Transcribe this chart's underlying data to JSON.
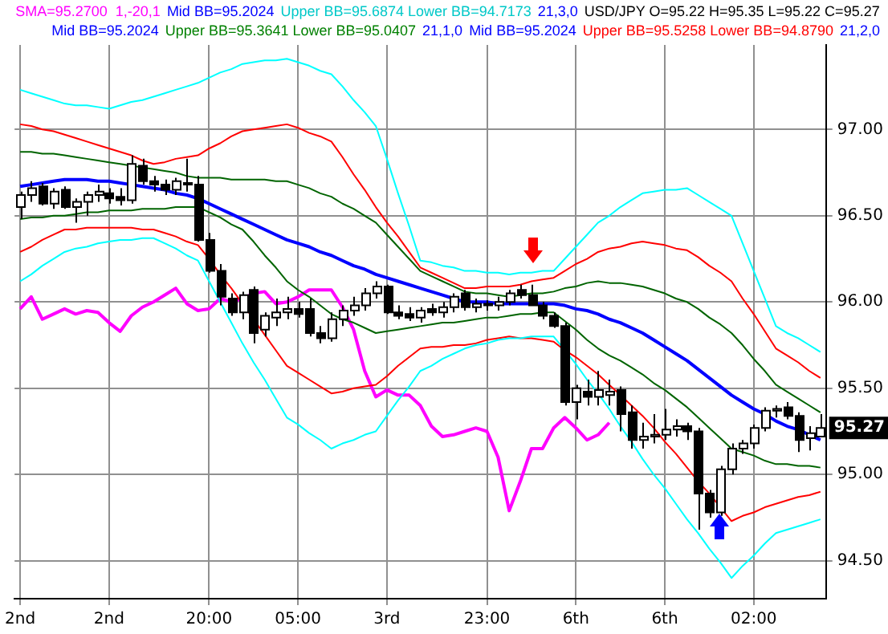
{
  "chart_data": {
    "type": "candlestick",
    "categories": [
      "2nd",
      null,
      null,
      null,
      null,
      null,
      null,
      null,
      "2nd",
      null,
      null,
      null,
      null,
      null,
      null,
      null,
      null,
      "20:00",
      null,
      null,
      null,
      null,
      null,
      null,
      null,
      "05:00",
      null,
      null,
      null,
      null,
      null,
      null,
      null,
      "3rd",
      null,
      null,
      null,
      null,
      null,
      null,
      null,
      null,
      "23:00",
      null,
      null,
      null,
      null,
      null,
      null,
      null,
      "6th",
      null,
      null,
      null,
      null,
      null,
      null,
      null,
      "6th",
      null,
      null,
      null,
      null,
      null,
      null,
      null,
      "02:00",
      null,
      null,
      null,
      null,
      null,
      null
    ],
    "ohlc": [
      [
        96.55,
        96.64,
        96.48,
        96.62
      ],
      [
        96.62,
        96.7,
        96.58,
        96.66
      ],
      [
        96.67,
        96.69,
        96.56,
        96.57
      ],
      [
        96.57,
        96.66,
        96.54,
        96.64
      ],
      [
        96.65,
        96.67,
        96.54,
        96.55
      ],
      [
        96.55,
        96.6,
        96.46,
        96.58
      ],
      [
        96.58,
        96.64,
        96.5,
        96.62
      ],
      [
        96.62,
        96.68,
        96.58,
        96.64
      ],
      [
        96.63,
        96.66,
        96.57,
        96.6
      ],
      [
        96.61,
        96.66,
        96.56,
        96.59
      ],
      [
        96.59,
        96.85,
        96.57,
        96.8
      ],
      [
        96.79,
        96.83,
        96.68,
        96.7
      ],
      [
        96.7,
        96.73,
        96.64,
        96.68
      ],
      [
        96.68,
        96.71,
        96.62,
        96.65
      ],
      [
        96.65,
        96.72,
        96.62,
        96.7
      ],
      [
        96.69,
        96.83,
        96.64,
        96.68
      ],
      [
        96.68,
        96.73,
        96.35,
        96.36
      ],
      [
        96.36,
        96.4,
        96.17,
        96.18
      ],
      [
        96.18,
        96.22,
        95.98,
        96.03
      ],
      [
        96.02,
        96.05,
        95.92,
        95.94
      ],
      [
        95.94,
        96.06,
        95.9,
        96.04
      ],
      [
        96.07,
        96.09,
        95.76,
        95.82
      ],
      [
        95.84,
        95.94,
        95.8,
        95.92
      ],
      [
        95.91,
        96.02,
        95.86,
        95.94
      ],
      [
        95.94,
        96.03,
        95.9,
        95.96
      ],
      [
        95.96,
        96.0,
        95.91,
        95.93
      ],
      [
        95.96,
        96.02,
        95.8,
        95.82
      ],
      [
        95.82,
        95.86,
        95.76,
        95.79
      ],
      [
        95.79,
        95.94,
        95.77,
        95.9
      ],
      [
        95.9,
        95.98,
        95.86,
        95.95
      ],
      [
        95.95,
        96.03,
        95.92,
        95.98
      ],
      [
        95.98,
        96.08,
        95.95,
        96.05
      ],
      [
        96.05,
        96.12,
        96.02,
        96.09
      ],
      [
        96.09,
        96.1,
        95.93,
        95.94
      ],
      [
        95.94,
        95.98,
        95.9,
        95.92
      ],
      [
        95.93,
        95.97,
        95.89,
        95.91
      ],
      [
        95.91,
        95.97,
        95.88,
        95.95
      ],
      [
        95.96,
        95.99,
        95.92,
        95.94
      ],
      [
        95.94,
        96.0,
        95.91,
        95.97
      ],
      [
        95.97,
        96.05,
        95.94,
        96.03
      ],
      [
        96.05,
        96.07,
        95.95,
        95.97
      ],
      [
        95.97,
        96.02,
        95.94,
        95.99
      ],
      [
        95.98,
        96.01,
        95.95,
        95.99
      ],
      [
        95.98,
        96.03,
        95.95,
        96.0
      ],
      [
        96.0,
        96.07,
        95.98,
        96.05
      ],
      [
        96.07,
        96.1,
        96.02,
        96.04
      ],
      [
        96.04,
        96.1,
        95.98,
        95.98
      ],
      [
        95.98,
        96.0,
        95.9,
        95.92
      ],
      [
        95.92,
        95.94,
        95.85,
        95.86
      ],
      [
        95.86,
        95.88,
        95.4,
        95.42
      ],
      [
        95.42,
        95.52,
        95.32,
        95.5
      ],
      [
        95.48,
        95.55,
        95.4,
        95.45
      ],
      [
        95.45,
        95.6,
        95.4,
        95.49
      ],
      [
        95.46,
        95.55,
        95.4,
        95.48
      ],
      [
        95.49,
        95.51,
        95.25,
        95.35
      ],
      [
        95.36,
        95.4,
        95.15,
        95.2
      ],
      [
        95.2,
        95.3,
        95.15,
        95.22
      ],
      [
        95.22,
        95.35,
        95.18,
        95.23
      ],
      [
        95.23,
        95.38,
        95.2,
        95.26
      ],
      [
        95.26,
        95.32,
        95.22,
        95.28
      ],
      [
        95.28,
        95.3,
        95.2,
        95.25
      ],
      [
        95.25,
        95.27,
        94.68,
        94.89
      ],
      [
        94.89,
        94.91,
        94.75,
        94.78
      ],
      [
        94.78,
        95.05,
        94.76,
        95.03
      ],
      [
        95.03,
        95.18,
        95.0,
        95.15
      ],
      [
        95.15,
        95.2,
        95.12,
        95.18
      ],
      [
        95.18,
        95.29,
        95.15,
        95.27
      ],
      [
        95.27,
        95.39,
        95.25,
        95.37
      ],
      [
        95.37,
        95.4,
        95.33,
        95.38
      ],
      [
        95.39,
        95.42,
        95.32,
        95.34
      ],
      [
        95.34,
        95.36,
        95.13,
        95.2
      ],
      [
        95.21,
        95.28,
        95.14,
        95.24
      ],
      [
        95.22,
        95.35,
        95.22,
        95.27
      ]
    ],
    "series": [
      {
        "type": "line",
        "color": "#00ffff",
        "values": [
          97.23,
          97.21,
          97.19,
          97.17,
          97.15,
          97.14,
          97.14,
          97.13,
          97.12,
          97.14,
          97.16,
          97.17,
          97.19,
          97.21,
          97.23,
          97.25,
          97.27,
          97.3,
          97.33,
          97.35,
          97.38,
          97.39,
          97.4,
          97.4,
          97.41,
          97.39,
          97.37,
          97.34,
          97.32,
          97.25,
          97.17,
          97.1,
          97.02,
          96.83,
          96.63,
          96.44,
          96.24,
          96.23,
          96.21,
          96.2,
          96.18,
          96.18,
          96.17,
          96.17,
          96.16,
          96.17,
          96.17,
          96.18,
          96.18,
          96.25,
          96.32,
          96.39,
          96.46,
          96.5,
          96.55,
          96.59,
          96.63,
          96.64,
          96.65,
          96.65,
          96.66,
          96.62,
          96.58,
          96.54,
          96.5,
          96.34,
          96.18,
          96.02,
          95.86,
          95.82,
          95.79,
          95.75,
          95.71
        ]
      },
      {
        "type": "line",
        "color": "#00ffff",
        "values": [
          96.12,
          96.16,
          96.21,
          96.25,
          96.29,
          96.31,
          96.32,
          96.34,
          96.35,
          96.36,
          96.36,
          96.37,
          96.37,
          96.34,
          96.31,
          96.27,
          96.24,
          96.12,
          96.0,
          95.88,
          95.76,
          95.65,
          95.55,
          95.44,
          95.33,
          95.29,
          95.24,
          95.2,
          95.15,
          95.18,
          95.2,
          95.23,
          95.25,
          95.34,
          95.43,
          95.51,
          95.6,
          95.63,
          95.67,
          95.7,
          95.73,
          95.75,
          95.76,
          95.78,
          95.79,
          95.79,
          95.8,
          95.8,
          95.8,
          95.72,
          95.64,
          95.55,
          95.47,
          95.38,
          95.28,
          95.19,
          95.09,
          95.0,
          94.92,
          94.83,
          94.74,
          94.66,
          94.57,
          94.49,
          94.4,
          94.47,
          94.53,
          94.6,
          94.66,
          94.68,
          94.7,
          94.72,
          94.74
        ]
      },
      {
        "type": "line",
        "color": "#ff0000",
        "values": [
          97.03,
          97.02,
          97.0,
          96.99,
          96.97,
          96.95,
          96.93,
          96.91,
          96.89,
          96.87,
          96.85,
          96.82,
          96.8,
          96.81,
          96.83,
          96.84,
          96.85,
          96.89,
          96.92,
          96.96,
          96.99,
          97.0,
          97.01,
          97.02,
          97.03,
          97.01,
          96.98,
          96.96,
          96.93,
          96.84,
          96.74,
          96.65,
          96.55,
          96.46,
          96.38,
          96.29,
          96.2,
          96.17,
          96.14,
          96.11,
          96.08,
          96.08,
          96.09,
          96.09,
          96.09,
          96.1,
          96.12,
          96.13,
          96.14,
          96.18,
          96.22,
          96.25,
          96.29,
          96.31,
          96.32,
          96.34,
          96.35,
          96.34,
          96.33,
          96.31,
          96.3,
          96.26,
          96.21,
          96.17,
          96.12,
          96.02,
          95.93,
          95.83,
          95.73,
          95.69,
          95.65,
          95.6,
          95.56
        ]
      },
      {
        "type": "line",
        "color": "#ff0000",
        "values": [
          96.29,
          96.32,
          96.36,
          96.39,
          96.42,
          96.42,
          96.43,
          96.43,
          96.43,
          96.43,
          96.43,
          96.42,
          96.42,
          96.4,
          96.38,
          96.35,
          96.33,
          96.25,
          96.16,
          96.08,
          95.99,
          95.9,
          95.81,
          95.72,
          95.63,
          95.59,
          95.55,
          95.51,
          95.47,
          95.48,
          95.5,
          95.51,
          95.52,
          95.57,
          95.63,
          95.68,
          95.73,
          95.74,
          95.74,
          95.75,
          95.75,
          95.76,
          95.78,
          95.79,
          95.8,
          95.79,
          95.79,
          95.78,
          95.77,
          95.72,
          95.68,
          95.63,
          95.58,
          95.52,
          95.46,
          95.4,
          95.34,
          95.27,
          95.19,
          95.12,
          95.04,
          94.96,
          94.89,
          94.81,
          94.73,
          94.76,
          94.78,
          94.81,
          94.83,
          94.85,
          94.87,
          94.88,
          94.9
        ]
      },
      {
        "type": "line",
        "color": "#006400",
        "values": [
          96.87,
          96.87,
          96.86,
          96.86,
          96.85,
          96.84,
          96.83,
          96.82,
          96.81,
          96.8,
          96.79,
          96.78,
          96.77,
          96.76,
          96.75,
          96.73,
          96.72,
          96.72,
          96.72,
          96.71,
          96.71,
          96.71,
          96.71,
          96.7,
          96.7,
          96.68,
          96.66,
          96.63,
          96.61,
          96.57,
          96.54,
          96.5,
          96.46,
          96.39,
          96.32,
          96.25,
          96.18,
          96.15,
          96.12,
          96.09,
          96.06,
          96.05,
          96.05,
          96.04,
          96.03,
          96.04,
          96.05,
          96.05,
          96.06,
          96.08,
          96.09,
          96.11,
          96.12,
          96.11,
          96.11,
          96.1,
          96.09,
          96.07,
          96.05,
          96.02,
          96.0,
          95.96,
          95.91,
          95.87,
          95.82,
          95.75,
          95.67,
          95.6,
          95.52,
          95.48,
          95.44,
          95.4,
          95.36
        ]
      },
      {
        "type": "line",
        "color": "#006400",
        "values": [
          96.48,
          96.49,
          96.49,
          96.5,
          96.5,
          96.51,
          96.52,
          96.52,
          96.53,
          96.53,
          96.53,
          96.54,
          96.54,
          96.54,
          96.55,
          96.55,
          96.55,
          96.52,
          96.49,
          96.45,
          96.42,
          96.35,
          96.27,
          96.2,
          96.12,
          96.07,
          96.03,
          95.98,
          95.93,
          95.9,
          95.88,
          95.85,
          95.82,
          95.83,
          95.84,
          95.85,
          95.86,
          95.87,
          95.88,
          95.88,
          95.89,
          95.9,
          95.91,
          95.91,
          95.92,
          95.93,
          95.93,
          95.94,
          95.94,
          95.89,
          95.84,
          95.78,
          95.73,
          95.69,
          95.66,
          95.62,
          95.58,
          95.53,
          95.49,
          95.44,
          95.39,
          95.33,
          95.27,
          95.21,
          95.15,
          95.13,
          95.11,
          95.08,
          95.06,
          95.06,
          95.05,
          95.05,
          95.04
        ]
      },
      {
        "type": "line",
        "color": "#0000ff",
        "values": [
          96.67,
          96.68,
          96.69,
          96.7,
          96.71,
          96.71,
          96.71,
          96.7,
          96.7,
          96.69,
          96.68,
          96.67,
          96.66,
          96.65,
          96.63,
          96.62,
          96.6,
          96.57,
          96.54,
          96.51,
          96.48,
          96.45,
          96.42,
          96.39,
          96.36,
          96.34,
          96.32,
          96.29,
          96.27,
          96.24,
          96.21,
          96.19,
          96.16,
          96.14,
          96.12,
          96.1,
          96.08,
          96.06,
          96.04,
          96.02,
          96.0,
          96.0,
          96.0,
          95.99,
          95.99,
          95.99,
          95.99,
          95.99,
          95.99,
          95.98,
          95.96,
          95.95,
          95.93,
          95.9,
          95.88,
          95.85,
          95.82,
          95.78,
          95.74,
          95.7,
          95.66,
          95.61,
          95.56,
          95.51,
          95.46,
          95.42,
          95.38,
          95.35,
          95.31,
          95.28,
          95.26,
          95.23,
          95.2
        ]
      },
      {
        "type": "line",
        "color": "#ff00ff",
        "values": [
          95.96,
          96.03,
          95.9,
          95.93,
          95.96,
          95.93,
          95.95,
          95.94,
          95.88,
          95.83,
          95.92,
          95.97,
          96.0,
          96.04,
          96.08,
          95.99,
          95.95,
          95.96,
          96.02,
          96.0,
          96.02,
          96.05,
          96.06,
          95.99,
          96.0,
          96.03,
          96.07,
          96.07,
          96.07,
          95.97,
          95.84,
          95.6,
          95.45,
          95.49,
          95.46,
          95.46,
          95.4,
          95.28,
          95.22,
          95.23,
          95.25,
          95.27,
          95.25,
          95.1,
          94.79,
          94.96,
          95.15,
          95.15,
          95.27,
          95.33,
          95.27,
          95.2,
          95.23,
          95.3,
          null,
          null,
          null,
          null,
          null,
          null,
          null,
          null,
          null,
          null,
          null,
          null,
          null,
          null,
          null,
          null,
          null,
          null,
          null
        ]
      }
    ],
    "ylim": [
      94.28,
      97.49
    ],
    "yticks": [
      {
        "value": 94.5,
        "label": "94.50"
      },
      {
        "value": 95,
        "label": "95.00"
      },
      {
        "value": 95.5,
        "label": "95.50"
      },
      {
        "value": 96,
        "label": "96.00"
      },
      {
        "value": 96.5,
        "label": "96.50"
      },
      {
        "value": 97,
        "label": "97.00"
      }
    ],
    "grid": true,
    "annotations": [
      "SMA=95.2700  1,-20,1",
      "Mid BB=95.2024",
      "Upper BB=95.6874 Lower BB=94.7173",
      "21,3,0",
      "USD/JPY O=95.22 H=95.35 L=95.22 C=95.27",
      "Mid BB=95.2024",
      "Upper BB=95.3641 Lower BB=95.0407",
      "21,1,0",
      "Mid BB=95.2024",
      "Upper BB=95.5258 Lower BB=94.8790",
      "21,2,0",
      {
        "text": "95.27",
        "y": 95.27
      }
    ]
  }
}
